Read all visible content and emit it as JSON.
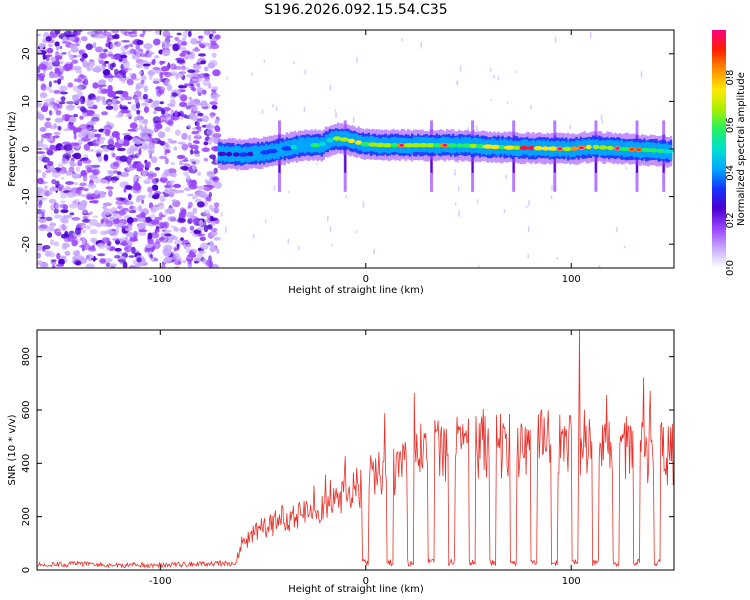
{
  "figure_title": "S196.2026.092.15.54.C35",
  "colors": {
    "background_top": "#ffffff",
    "axes": "#000000",
    "snr_line": "#e8312a",
    "colormap": [
      "#ffffff",
      "#c7a8ff",
      "#9a44ff",
      "#4b00d0",
      "#1633ff",
      "#00a8ff",
      "#00e0d0",
      "#22f060",
      "#a8f000",
      "#ffe800",
      "#ff9000",
      "#ff2000",
      "#ff0080"
    ]
  },
  "chart_data": [
    {
      "type": "heatmap",
      "title": "",
      "xlabel": "Height of straight line (km)",
      "ylabel": "Frequency (Hz)",
      "xlim": [
        -160,
        150
      ],
      "ylim": [
        -25,
        25
      ],
      "xticks": [
        -100,
        0,
        100
      ],
      "xtick_labels": [
        "-100",
        "0",
        "100"
      ],
      "yticks": [
        -20,
        -10,
        0,
        10,
        20
      ],
      "ytick_labels": [
        "-20",
        "-10",
        "0",
        "10",
        "20"
      ],
      "colorbar": {
        "label": "Normalized spectral amplitude",
        "range": [
          0.0,
          1.0
        ],
        "ticks": [
          0.0,
          0.2,
          0.4,
          0.6,
          0.8
        ],
        "tick_labels": [
          "0.0",
          "0.2",
          "0.4",
          "0.6",
          "0.8"
        ]
      },
      "noise_region_x": [
        -160,
        -72
      ],
      "ridge": {
        "x": [
          -72,
          -60,
          -50,
          -40,
          -30,
          -22,
          -18,
          -14,
          -10,
          -5,
          0,
          10,
          20,
          30,
          40,
          50,
          60,
          70,
          80,
          90,
          100,
          110,
          120,
          130,
          140,
          148
        ],
        "frequency": [
          -1.0,
          -1.2,
          -0.8,
          0.0,
          0.8,
          0.8,
          1.8,
          2.2,
          2.0,
          1.5,
          1.0,
          0.8,
          0.8,
          0.8,
          0.8,
          0.7,
          0.5,
          0.3,
          0.2,
          0.1,
          0.0,
          0.5,
          0.2,
          -0.1,
          -0.3,
          -0.5
        ],
        "amplitude": [
          0.3,
          0.35,
          0.4,
          0.45,
          0.5,
          0.55,
          0.6,
          0.7,
          0.75,
          0.7,
          0.75,
          0.7,
          0.78,
          0.7,
          0.8,
          0.65,
          0.75,
          0.7,
          0.92,
          0.7,
          0.88,
          0.75,
          0.9,
          0.75,
          0.7,
          0.6
        ]
      },
      "vertical_spikes_x": [
        -42,
        -10,
        32,
        52,
        72,
        92,
        112,
        132,
        145
      ]
    },
    {
      "type": "line",
      "title": "",
      "xlabel": "Height of straight line (km)",
      "ylabel": "SNR (10 * v/v)",
      "xlim": [
        -160,
        150
      ],
      "ylim": [
        0,
        900
      ],
      "xticks": [
        -100,
        0,
        100
      ],
      "xtick_labels": [
        "-100",
        "0",
        "100"
      ],
      "yticks": [
        0,
        200,
        400,
        600,
        800
      ],
      "ytick_labels": [
        "0",
        "200",
        "400",
        "600",
        "800"
      ],
      "series": [
        {
          "name": "SNR",
          "x": [
            -160,
            -140,
            -120,
            -100,
            -80,
            -70,
            -64,
            -60,
            -55,
            -50,
            -45,
            -40,
            -35,
            -30,
            -25,
            -20,
            -15,
            -10,
            -5,
            0,
            5,
            10,
            15,
            20,
            30,
            40,
            50,
            60,
            70,
            80,
            90,
            100,
            105,
            110,
            120,
            130,
            140,
            150
          ],
          "values": [
            20,
            22,
            18,
            20,
            22,
            25,
            20,
            90,
            140,
            160,
            170,
            200,
            190,
            220,
            230,
            260,
            270,
            290,
            300,
            320,
            340,
            370,
            380,
            420,
            440,
            450,
            460,
            465,
            470,
            470,
            480,
            475,
            480,
            470,
            465,
            460,
            440,
            430
          ],
          "dropouts_x": [
            0,
            12,
            22,
            32,
            42,
            52,
            62,
            72,
            82,
            92,
            102,
            112,
            122,
            132,
            142
          ],
          "spike": {
            "x": 104,
            "value": 900
          }
        }
      ]
    }
  ]
}
